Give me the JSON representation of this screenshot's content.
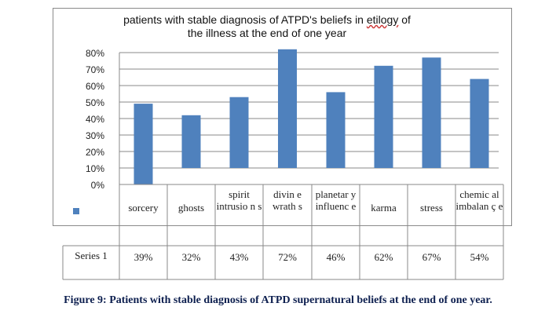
{
  "chart_data": {
    "type": "bar",
    "title": "patients with stable diagnosis of ATPD's beliefs in etilogy of the illness at the end of one year",
    "title_line1_pre": "patients with stable diagnosis of ATPD's beliefs in ",
    "title_line1_word": "etilogy",
    "title_line1_post": " of",
    "title_line2": "the illness at the end of one year",
    "categories": [
      "sorcery",
      "ghosts",
      "spirit intrusio n s",
      "divin e wrath s",
      "planetar y influenc e",
      "karma",
      "stress",
      "chemic al imbalan ç e"
    ],
    "series": [
      {
        "name": "Series 1",
        "values": [
          39,
          32,
          43,
          72,
          46,
          62,
          67,
          54
        ],
        "labels": [
          "39%",
          "32%",
          "43%",
          "72%",
          "46%",
          "62%",
          "67%",
          "54%"
        ],
        "color": "#4f81bd"
      }
    ],
    "yticks": [
      "0%",
      "10%",
      "20%",
      "30%",
      "40%",
      "50%",
      "60%",
      "70%",
      "80%"
    ],
    "ylim": [
      0,
      80
    ],
    "grid": true,
    "legend": "bottom-left in data table",
    "series_label": "Series 1"
  },
  "caption": "Figure 9: Patients with stable diagnosis of ATPD supernatural beliefs at the end of one year."
}
